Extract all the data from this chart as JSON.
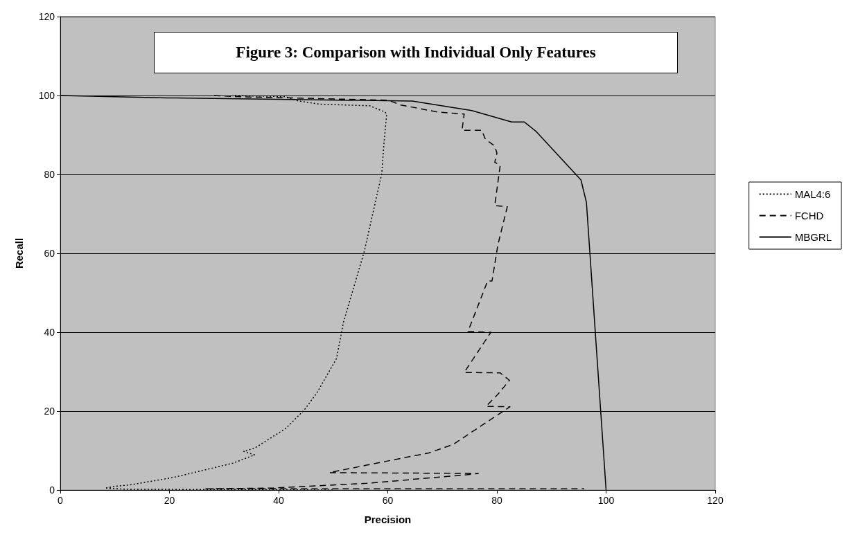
{
  "chart_data": {
    "type": "line",
    "title": "Figure 3: Comparison with Individual Only Features",
    "xlabel": "Precision",
    "ylabel": "Recall",
    "xlim": [
      0,
      120
    ],
    "xticks": [
      0,
      20,
      40,
      60,
      80,
      100,
      120
    ],
    "ylim": [
      0,
      120
    ],
    "yticks": [
      0,
      20,
      40,
      60,
      80,
      100,
      120
    ],
    "grid": "y",
    "legend": "right",
    "marker": "none",
    "series": [
      {
        "name": "MAL4:6",
        "color": "#000000",
        "line_style": "dotted",
        "x": [
          32,
          41.3,
          43.6,
          47.6,
          56.7,
          59.5,
          59.8,
          59.3,
          58.9,
          55.7,
          51.9,
          50.6,
          47,
          44.7,
          41.3,
          35.6,
          33.6,
          35.6,
          31.6,
          20.8,
          12.8,
          10.5,
          8.2,
          12,
          50
        ],
        "values": [
          100,
          99.7,
          98.6,
          97.8,
          97.4,
          95.8,
          95.3,
          87.8,
          80.2,
          60.5,
          42.6,
          33.3,
          24.6,
          20.3,
          15.6,
          10.6,
          9.8,
          8.9,
          6.8,
          3.2,
          1.3,
          1,
          0.5,
          0.2,
          0
        ]
      },
      {
        "name": "FCHD",
        "color": "#000000",
        "line_style": "dashed",
        "x": [
          28.2,
          32.7,
          60.1,
          62.4,
          69.2,
          74,
          73.6,
          77.2,
          77.9,
          79.6,
          80,
          79.6,
          80.6,
          79.6,
          81.9,
          80.2,
          79.1,
          78.3,
          74.7,
          78.9,
          74,
          80.6,
          82.3,
          80.2,
          78,
          82.4,
          71.9,
          67.5,
          56.1,
          49.3,
          76.6,
          73.2,
          56.1,
          39,
          26.4,
          96
        ],
        "values": [
          100,
          99.7,
          98.8,
          97.6,
          95.8,
          95.3,
          91.2,
          91.2,
          88.9,
          87.2,
          85.4,
          83.1,
          82.3,
          72.1,
          71.8,
          62.3,
          53,
          53,
          40.2,
          40,
          29.8,
          29.7,
          27.8,
          24.3,
          21.2,
          21.1,
          11.5,
          9.4,
          6.3,
          4.4,
          4.2,
          3.7,
          1.7,
          0.5,
          0.3,
          0.3
        ]
      },
      {
        "name": "MBGRL",
        "color": "#000000",
        "line_style": "solid",
        "x": [
          0,
          19.6,
          64.5,
          75.4,
          82.7,
          85,
          87.1,
          95.4,
          96.4,
          100
        ],
        "values": [
          100,
          99.4,
          98.6,
          96.2,
          93.3,
          93.3,
          91,
          78.6,
          72.9,
          0
        ]
      }
    ]
  }
}
